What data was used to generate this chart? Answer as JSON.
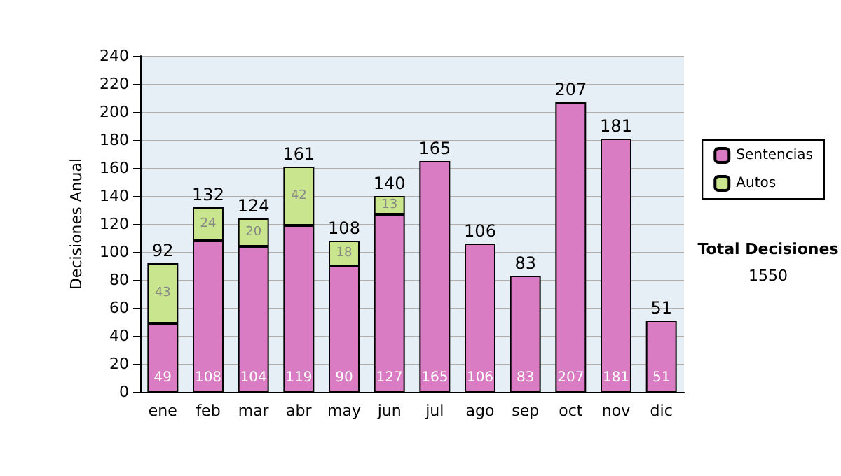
{
  "chart_data": {
    "type": "bar",
    "stacked": true,
    "ylabel": "Decisiones Anual",
    "categories": [
      "ene",
      "feb",
      "mar",
      "abr",
      "may",
      "jun",
      "jul",
      "ago",
      "sep",
      "oct",
      "nov",
      "dic"
    ],
    "series": [
      {
        "name": "Sentencias",
        "color": "#d97cc4",
        "values": [
          49,
          108,
          104,
          119,
          90,
          127,
          165,
          106,
          83,
          207,
          181,
          51
        ]
      },
      {
        "name": "Autos",
        "color": "#c9e68f",
        "values": [
          43,
          24,
          20,
          42,
          18,
          13,
          null,
          null,
          null,
          null,
          null,
          null
        ]
      }
    ],
    "totals": [
      "92",
      "132",
      "124",
      "161",
      "108",
      "140",
      "165",
      "106",
      "83",
      "207",
      "181",
      "51"
    ],
    "ylim": [
      0,
      240
    ],
    "yticks": [
      0,
      20,
      40,
      60,
      80,
      100,
      120,
      140,
      160,
      180,
      200,
      220,
      240
    ],
    "grid": "y",
    "legend": "right",
    "data_labels": true,
    "annotations": [
      "Total Decisiones",
      "1550"
    ]
  }
}
